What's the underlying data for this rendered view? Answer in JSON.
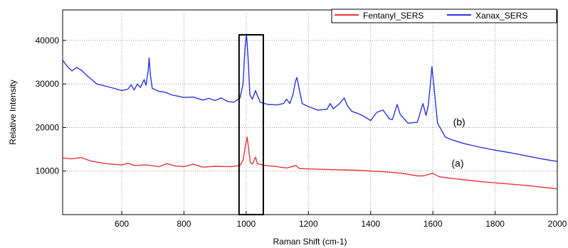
{
  "chart_data": {
    "type": "line",
    "xlabel": "Raman Shift (cm-1)",
    "ylabel": "Relative Intensity",
    "xlim": [
      410,
      2000
    ],
    "ylim": [
      0,
      47000
    ],
    "x_ticks": [
      "600",
      "800",
      "1000",
      "1200",
      "1400",
      "1600",
      "1800",
      "2000"
    ],
    "y_ticks": [
      "10000",
      "20000",
      "30000",
      "40000"
    ],
    "grid": true,
    "legend_position": "top-right",
    "series": [
      {
        "name": "Fentanyl_SERS",
        "color": "#e8363a",
        "annotation": "(a)",
        "points": [
          [
            410,
            13000
          ],
          [
            440,
            12800
          ],
          [
            470,
            13100
          ],
          [
            500,
            12300
          ],
          [
            550,
            11700
          ],
          [
            600,
            11400
          ],
          [
            620,
            11800
          ],
          [
            640,
            11300
          ],
          [
            680,
            11400
          ],
          [
            720,
            11000
          ],
          [
            745,
            11700
          ],
          [
            770,
            11200
          ],
          [
            800,
            11000
          ],
          [
            830,
            11600
          ],
          [
            860,
            10900
          ],
          [
            900,
            11100
          ],
          [
            950,
            11000
          ],
          [
            980,
            11300
          ],
          [
            990,
            12500
          ],
          [
            998,
            16000
          ],
          [
            1003,
            17800
          ],
          [
            1008,
            15000
          ],
          [
            1013,
            12000
          ],
          [
            1020,
            11600
          ],
          [
            1030,
            13200
          ],
          [
            1036,
            11700
          ],
          [
            1060,
            11300
          ],
          [
            1100,
            11000
          ],
          [
            1130,
            10700
          ],
          [
            1160,
            11300
          ],
          [
            1170,
            10600
          ],
          [
            1200,
            10500
          ],
          [
            1250,
            10400
          ],
          [
            1300,
            10300
          ],
          [
            1350,
            10200
          ],
          [
            1400,
            10000
          ],
          [
            1450,
            9800
          ],
          [
            1500,
            9500
          ],
          [
            1550,
            8900
          ],
          [
            1570,
            8900
          ],
          [
            1590,
            9300
          ],
          [
            1600,
            9500
          ],
          [
            1620,
            8700
          ],
          [
            1650,
            8400
          ],
          [
            1700,
            8000
          ],
          [
            1750,
            7600
          ],
          [
            1800,
            7300
          ],
          [
            1850,
            7000
          ],
          [
            1900,
            6700
          ],
          [
            1950,
            6300
          ],
          [
            2000,
            5900
          ]
        ]
      },
      {
        "name": "Xanax_SERS",
        "color": "#2a35e0",
        "annotation": "(b)",
        "points": [
          [
            410,
            35500
          ],
          [
            425,
            34000
          ],
          [
            440,
            33000
          ],
          [
            455,
            33800
          ],
          [
            470,
            33200
          ],
          [
            490,
            31800
          ],
          [
            520,
            30000
          ],
          [
            560,
            29300
          ],
          [
            600,
            28500
          ],
          [
            620,
            28800
          ],
          [
            630,
            29800
          ],
          [
            640,
            28600
          ],
          [
            650,
            30000
          ],
          [
            660,
            29200
          ],
          [
            672,
            31000
          ],
          [
            678,
            29700
          ],
          [
            685,
            33000
          ],
          [
            688,
            36000
          ],
          [
            692,
            32000
          ],
          [
            698,
            29000
          ],
          [
            720,
            28300
          ],
          [
            740,
            28100
          ],
          [
            760,
            27500
          ],
          [
            780,
            27200
          ],
          [
            800,
            26900
          ],
          [
            830,
            27000
          ],
          [
            860,
            26300
          ],
          [
            880,
            26700
          ],
          [
            900,
            26200
          ],
          [
            920,
            26800
          ],
          [
            940,
            26000
          ],
          [
            960,
            25800
          ],
          [
            980,
            26800
          ],
          [
            990,
            30000
          ],
          [
            996,
            38000
          ],
          [
            1001,
            41500
          ],
          [
            1006,
            36000
          ],
          [
            1012,
            27500
          ],
          [
            1020,
            26500
          ],
          [
            1030,
            28500
          ],
          [
            1035,
            27500
          ],
          [
            1045,
            25800
          ],
          [
            1070,
            25300
          ],
          [
            1100,
            25200
          ],
          [
            1120,
            25500
          ],
          [
            1130,
            26500
          ],
          [
            1140,
            25500
          ],
          [
            1150,
            27500
          ],
          [
            1158,
            30500
          ],
          [
            1163,
            31500
          ],
          [
            1170,
            29000
          ],
          [
            1180,
            25500
          ],
          [
            1200,
            24800
          ],
          [
            1230,
            24000
          ],
          [
            1260,
            24200
          ],
          [
            1270,
            25500
          ],
          [
            1280,
            24300
          ],
          [
            1300,
            25500
          ],
          [
            1315,
            26800
          ],
          [
            1325,
            25000
          ],
          [
            1340,
            23700
          ],
          [
            1360,
            23200
          ],
          [
            1380,
            22500
          ],
          [
            1400,
            21600
          ],
          [
            1420,
            23500
          ],
          [
            1440,
            24000
          ],
          [
            1460,
            22000
          ],
          [
            1470,
            21800
          ],
          [
            1485,
            25300
          ],
          [
            1495,
            23000
          ],
          [
            1520,
            21000
          ],
          [
            1550,
            21200
          ],
          [
            1568,
            25500
          ],
          [
            1578,
            22800
          ],
          [
            1585,
            25000
          ],
          [
            1592,
            30000
          ],
          [
            1597,
            34000
          ],
          [
            1604,
            29000
          ],
          [
            1615,
            21000
          ],
          [
            1640,
            17800
          ],
          [
            1660,
            17200
          ],
          [
            1700,
            16300
          ],
          [
            1750,
            15500
          ],
          [
            1800,
            14800
          ],
          [
            1850,
            14200
          ],
          [
            1900,
            13500
          ],
          [
            1950,
            12800
          ],
          [
            2000,
            12200
          ]
        ]
      }
    ],
    "highlight_range": [
      977,
      1055
    ]
  }
}
